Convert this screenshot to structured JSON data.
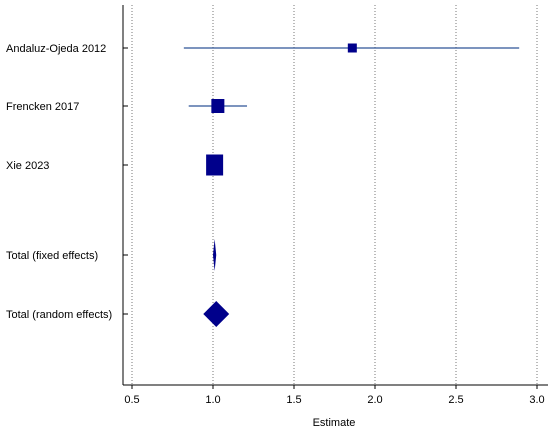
{
  "chart_data": {
    "type": "forest",
    "xlabel": "Estimate",
    "xlim": [
      0.4,
      3.05
    ],
    "x_ticks": [
      0.5,
      1.0,
      1.5,
      2.0,
      2.5,
      3.0
    ],
    "x_tick_labels": [
      "0.5",
      "1.0",
      "1.5",
      "2.0",
      "2.5",
      "3.0"
    ],
    "grid": "vertical dotted",
    "studies": [
      {
        "label": "Andaluz-Ojeda 2012",
        "estimate": 1.86,
        "ci": [
          0.82,
          2.89
        ],
        "weight": 1
      },
      {
        "label": "Frencken 2017",
        "estimate": 1.03,
        "ci": [
          0.85,
          1.21
        ],
        "weight": 2
      },
      {
        "label": "Xie 2023",
        "estimate": 1.01,
        "ci": [
          0.98,
          1.04
        ],
        "weight": 3
      }
    ],
    "totals": [
      {
        "label": "Total (fixed effects)",
        "estimate": 1.01,
        "ci": [
          1.0,
          1.02
        ]
      },
      {
        "label": "Total (random effects)",
        "estimate": 1.02,
        "ci": [
          0.94,
          1.1
        ]
      }
    ],
    "colors": {
      "marker": "#00008B",
      "ci_line": "#2F5597",
      "axis": "#000000",
      "grid": "#777777"
    }
  }
}
